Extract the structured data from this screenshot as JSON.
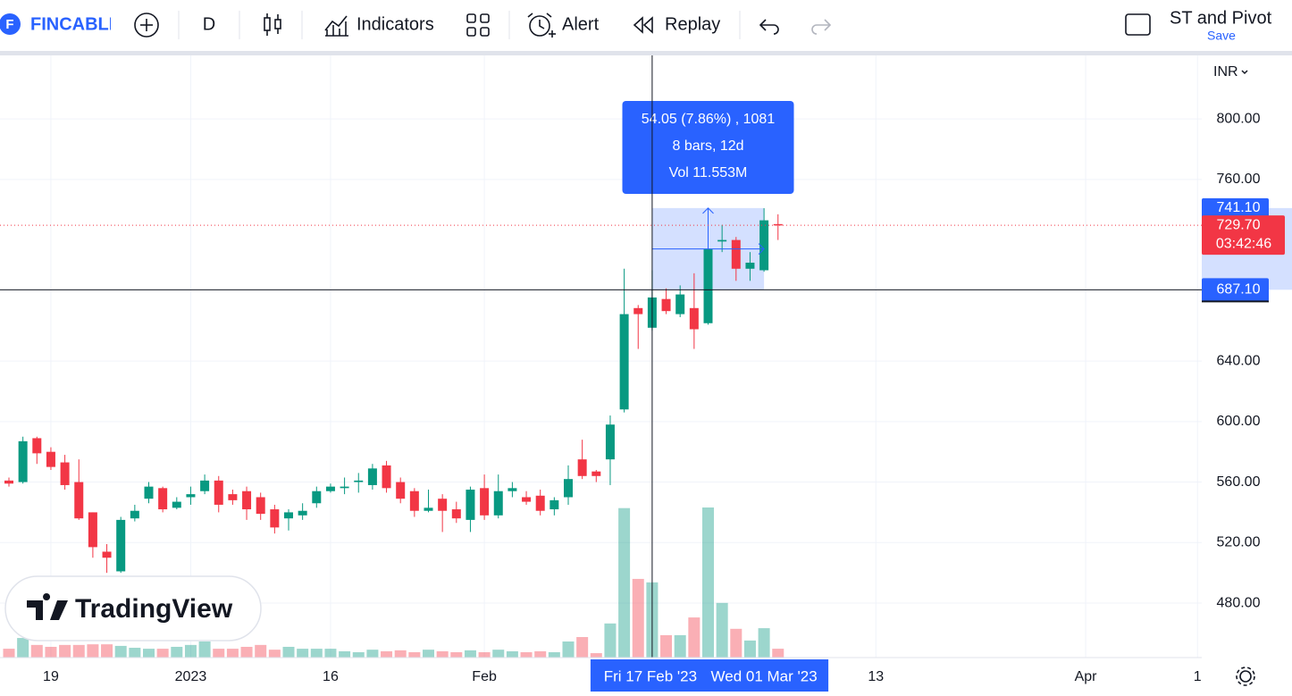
{
  "toolbar": {
    "logo_letter": "F",
    "brand": "FINCABLE",
    "interval": "D",
    "indicators": "Indicators",
    "alert": "Alert",
    "replay": "Replay",
    "layout_name": "ST and Pivot",
    "save": "Save"
  },
  "watermark": "TradingView",
  "chart_data": {
    "type": "candlestick",
    "currency": "INR",
    "up_color": "#089981",
    "down_color": "#f23645",
    "grid": true,
    "categories": [
      null,
      null,
      null,
      "19",
      null,
      null,
      null,
      null,
      null,
      null,
      null,
      null,
      null,
      "2023",
      null,
      null,
      null,
      null,
      null,
      null,
      null,
      null,
      null,
      "16",
      null,
      null,
      null,
      null,
      null,
      null,
      null,
      null,
      null,
      null,
      "Feb",
      null,
      null,
      null,
      null,
      null,
      null,
      null,
      null,
      null,
      null,
      null,
      null,
      null,
      null,
      null,
      null,
      null,
      null,
      null,
      null,
      null,
      null,
      null,
      null,
      null,
      null,
      null,
      "13",
      null,
      null,
      null,
      null,
      null,
      null,
      null,
      null,
      null,
      null,
      null,
      null,
      null,
      null,
      "Apr",
      null,
      null,
      null,
      null,
      null,
      null,
      null,
      "1"
    ],
    "open": [
      561,
      560,
      589,
      580,
      573,
      560,
      540,
      514,
      501,
      536,
      549,
      556,
      543,
      550,
      554,
      561,
      552,
      554,
      550,
      542,
      536,
      538,
      546,
      554,
      556,
      560,
      558,
      571,
      560,
      554,
      541,
      549,
      542,
      535,
      556,
      538,
      554,
      550,
      551,
      542,
      550,
      575,
      567,
      575,
      608,
      675,
      662,
      681,
      671,
      675,
      665,
      719,
      720,
      701,
      700,
      730.5,
      null,
      null,
      null,
      null,
      null,
      null,
      null,
      null,
      null,
      null,
      null,
      null,
      null,
      null,
      null,
      null,
      null,
      null,
      null,
      null,
      null,
      null,
      null,
      null,
      null,
      null,
      null,
      null,
      null,
      null
    ],
    "high": [
      563,
      590,
      590,
      583,
      578,
      575,
      540,
      519,
      537,
      545,
      560,
      557,
      550,
      557,
      565,
      564,
      555,
      557,
      553,
      545,
      542,
      546,
      557,
      559,
      563,
      566,
      572,
      574,
      563,
      556,
      555,
      552,
      547,
      557,
      565,
      565,
      560,
      554,
      555,
      550,
      571,
      588,
      568,
      604,
      701,
      677,
      700,
      688,
      690,
      698,
      741,
      730,
      722,
      712,
      741,
      737,
      null,
      null,
      null,
      null,
      null,
      null,
      null,
      null,
      null,
      null,
      null,
      null,
      null,
      null,
      null,
      null,
      null,
      null,
      null,
      null,
      null,
      null,
      null,
      null,
      null,
      null,
      null,
      null,
      null,
      null
    ],
    "low": [
      557,
      559,
      572,
      568,
      555,
      535,
      510,
      500,
      500,
      534,
      546,
      540,
      542,
      545,
      552,
      540,
      545,
      535,
      535,
      526,
      528,
      535,
      543,
      553,
      552,
      553,
      555,
      553,
      546,
      537,
      540,
      527,
      533,
      527,
      535,
      536,
      550,
      545,
      538,
      538,
      545,
      562,
      560,
      558,
      606,
      648,
      660,
      671,
      669,
      648,
      664,
      712,
      693,
      693,
      699,
      720,
      null,
      null,
      null,
      null,
      null,
      null,
      null,
      null,
      null,
      null,
      null,
      null,
      null,
      null,
      null,
      null,
      null,
      null,
      null,
      null,
      null,
      null,
      null,
      null,
      null,
      null,
      null,
      null,
      null,
      null
    ],
    "close": [
      559,
      587,
      579,
      570,
      558,
      536,
      517,
      510,
      535,
      541,
      557,
      542,
      547,
      552,
      561,
      545,
      548,
      542,
      539,
      530,
      540,
      541,
      554,
      557,
      557,
      561,
      569,
      556,
      549,
      541,
      543,
      541,
      536,
      555,
      538,
      554,
      556,
      547,
      541,
      548,
      562,
      564,
      564,
      598,
      671,
      671,
      682,
      673,
      684,
      661,
      714,
      720,
      701,
      705,
      733,
      729.7,
      null,
      null,
      null,
      null,
      null,
      null,
      null,
      null,
      null,
      null,
      null,
      null,
      null,
      null,
      null,
      null,
      null,
      null,
      null,
      null,
      null,
      null,
      null,
      null,
      null,
      null,
      null,
      null,
      null,
      null
    ],
    "volume": [
      0.28,
      0.62,
      0.4,
      0.34,
      0.4,
      0.4,
      0.42,
      0.42,
      0.37,
      0.31,
      0.28,
      0.28,
      0.34,
      0.4,
      0.51,
      0.28,
      0.28,
      0.34,
      0.4,
      0.25,
      0.34,
      0.28,
      0.28,
      0.28,
      0.2,
      0.17,
      0.25,
      0.2,
      0.23,
      0.17,
      0.25,
      0.2,
      0.17,
      0.23,
      0.17,
      0.25,
      0.2,
      0.17,
      0.2,
      0.17,
      0.51,
      0.65,
      0.14,
      1.08,
      4.73,
      2.49,
      2.38,
      0.71,
      0.71,
      1.27,
      4.75,
      1.73,
      0.91,
      0.54,
      0.93,
      0.28,
      null,
      null,
      null,
      null,
      null,
      null,
      null,
      null,
      null,
      null,
      null,
      null,
      null,
      null,
      null,
      null,
      null,
      null,
      null,
      null,
      null,
      null,
      null,
      null,
      null,
      null,
      null,
      null,
      null,
      null
    ],
    "ylim": [
      444,
      842
    ],
    "yticks": [
      {
        "value": 800,
        "label": "800.00"
      },
      {
        "value": 760,
        "label": "760.00"
      },
      {
        "value": 640,
        "label": "640.00"
      },
      {
        "value": 600,
        "label": "600.00"
      },
      {
        "value": 560,
        "label": "560.00"
      },
      {
        "value": 520,
        "label": "520.00"
      },
      {
        "value": 480,
        "label": "480.00"
      }
    ],
    "last_price": {
      "value": 729.7,
      "label": "729.70"
    },
    "countdown": "03:42:46",
    "crosshair": {
      "price": {
        "value": 687.1,
        "label": "687.10"
      },
      "date": "Fri 17 Feb '23"
    },
    "measure": {
      "high": {
        "value": 741.1,
        "label": "741.10"
      },
      "low": {
        "value": 687.1,
        "label": "687.10"
      },
      "to_date": "Wed 01 Mar '23",
      "lines": [
        "54.05 (7.86%) , 1081",
        "8 bars, 12d",
        "Vol 11.553M"
      ]
    }
  }
}
